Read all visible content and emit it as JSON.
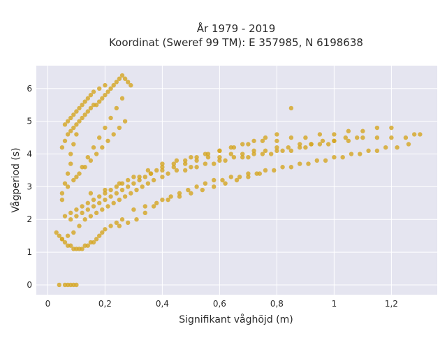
{
  "chart_data": {
    "type": "scatter",
    "title_line1": "År 1979 - 2019",
    "title_line2": "Koordinat (Sweref 99 TM): E 357985, N 6198638",
    "xlabel": "Signifikant våghöjd (m)",
    "ylabel": "Vågperiod (s)",
    "xlim": [
      -0.04,
      1.36
    ],
    "ylim": [
      -0.3,
      6.7
    ],
    "xticks": [
      {
        "value": 0,
        "label": "0"
      },
      {
        "value": 0.2,
        "label": "0,2"
      },
      {
        "value": 0.4,
        "label": "0,4"
      },
      {
        "value": 0.6,
        "label": "0,6"
      },
      {
        "value": 0.8,
        "label": "0,8"
      },
      {
        "value": 1.0,
        "label": "1"
      },
      {
        "value": 1.2,
        "label": "1,2"
      }
    ],
    "yticks": [
      {
        "value": 0,
        "label": "0"
      },
      {
        "value": 1,
        "label": "1"
      },
      {
        "value": 2,
        "label": "2"
      },
      {
        "value": 3,
        "label": "3"
      },
      {
        "value": 4,
        "label": "4"
      },
      {
        "value": 5,
        "label": "5"
      },
      {
        "value": 6,
        "label": "6"
      }
    ],
    "grid": true,
    "colors": {
      "marker": "#d4a520",
      "plot_bg": "#e5e5f0",
      "grid": "#ffffff",
      "text": "#2a2a2a"
    },
    "series": [
      {
        "x": [
          0.04,
          0.06,
          0.07,
          0.08,
          0.09,
          0.1,
          0.05,
          0.05,
          0.06,
          0.07,
          0.08,
          0.08,
          0.09,
          0.1,
          0.06,
          0.07,
          0.08,
          0.09,
          0.1,
          0.11,
          0.12,
          0.13,
          0.14,
          0.15,
          0.16,
          0.18,
          0.2,
          0.05,
          0.07,
          0.09,
          0.11,
          0.13,
          0.15,
          0.17,
          0.19,
          0.21,
          0.23,
          0.25,
          0.27,
          0.29,
          0.31,
          0.33,
          0.35,
          0.37,
          0.4,
          0.42,
          0.45,
          0.48,
          0.5,
          0.52,
          0.55,
          0.58,
          0.6,
          0.62,
          0.65,
          0.68,
          0.7,
          0.72,
          0.75,
          0.78,
          0.8,
          0.82,
          0.85,
          0.88,
          0.9,
          0.92,
          0.95,
          0.98,
          1.0,
          1.05,
          1.1,
          1.15,
          1.2,
          1.25,
          1.28,
          1.3,
          0.03,
          0.04,
          0.05,
          0.06,
          0.07,
          0.08,
          0.09,
          0.1,
          0.11,
          0.12,
          0.13,
          0.14,
          0.15,
          0.16,
          0.17,
          0.18,
          0.19,
          0.2,
          0.22,
          0.24,
          0.26,
          0.08,
          0.1,
          0.12,
          0.14,
          0.16,
          0.18,
          0.2,
          0.22,
          0.24,
          0.26,
          0.28,
          0.3,
          0.32,
          0.34,
          0.36,
          0.38,
          0.4,
          0.44,
          0.48,
          0.52,
          0.56,
          0.6,
          0.64,
          0.68,
          0.72,
          0.76,
          0.8,
          0.15,
          0.2,
          0.25,
          0.3,
          0.35,
          0.4,
          0.45,
          0.5,
          0.55,
          0.6,
          0.65,
          0.7,
          0.75,
          0.8,
          0.85,
          0.9,
          0.95,
          1.0,
          1.05,
          1.1,
          1.15,
          1.2,
          0.1,
          0.12,
          0.14,
          0.16,
          0.18,
          0.2,
          0.22,
          0.24,
          0.26,
          0.07,
          0.09,
          0.11,
          0.13,
          0.15,
          0.17,
          0.19,
          0.21,
          0.23,
          0.25,
          0.27,
          0.3,
          0.34,
          0.38,
          0.42,
          0.46,
          0.5,
          0.54,
          0.58,
          0.62,
          0.66,
          0.7,
          0.74,
          0.06,
          0.08,
          0.1,
          0.12,
          0.14,
          0.16,
          0.18,
          0.2,
          0.22,
          0.24,
          0.26,
          0.28,
          0.32,
          0.36,
          0.4,
          0.44,
          0.48,
          0.52,
          0.56,
          0.6,
          0.64,
          0.68,
          0.72,
          0.76,
          0.8,
          0.84,
          0.88,
          0.92,
          0.96,
          1.0,
          1.04,
          1.08,
          0.25,
          0.28,
          0.31,
          0.34,
          0.37,
          0.4,
          0.43,
          0.46,
          0.49,
          0.52,
          0.55,
          0.58,
          0.61,
          0.64,
          0.67,
          0.7,
          0.73,
          0.76,
          0.79,
          0.82,
          0.85,
          0.88,
          0.91,
          0.94,
          0.97,
          1.0,
          1.03,
          1.06,
          1.09,
          1.12,
          1.15,
          1.18,
          1.22,
          1.26,
          0.85,
          0.05,
          0.06,
          0.07,
          0.08,
          0.09,
          0.1,
          0.11,
          0.12,
          0.13,
          0.14,
          0.15,
          0.16,
          0.17,
          0.18,
          0.19,
          0.2,
          0.21,
          0.22,
          0.23,
          0.24,
          0.25,
          0.26,
          0.27,
          0.28,
          0.29
        ],
        "y": [
          0,
          0,
          0,
          0,
          0,
          0,
          2.6,
          2.8,
          3.1,
          3.4,
          3.7,
          4.0,
          4.3,
          4.6,
          4.9,
          5.0,
          5.1,
          5.2,
          5.3,
          5.4,
          5.5,
          5.6,
          5.7,
          5.8,
          5.9,
          6.0,
          6.1,
          1.4,
          1.5,
          1.6,
          1.8,
          2.0,
          2.1,
          2.2,
          2.3,
          2.4,
          2.5,
          2.6,
          2.7,
          2.8,
          2.9,
          3.0,
          3.1,
          3.2,
          3.3,
          3.4,
          3.5,
          3.5,
          3.6,
          3.6,
          3.7,
          3.7,
          3.8,
          3.8,
          3.9,
          3.9,
          3.9,
          4.0,
          4.0,
          4.0,
          4.1,
          4.1,
          4.1,
          4.2,
          4.2,
          4.3,
          4.3,
          4.3,
          4.4,
          4.4,
          4.5,
          4.5,
          4.5,
          4.5,
          4.6,
          4.6,
          1.6,
          1.5,
          1.4,
          1.3,
          1.2,
          1.2,
          1.1,
          1.1,
          1.1,
          1.1,
          1.2,
          1.2,
          1.3,
          1.3,
          1.4,
          1.5,
          1.6,
          1.7,
          1.8,
          1.9,
          2.0,
          2.0,
          2.1,
          2.2,
          2.3,
          2.4,
          2.5,
          2.6,
          2.7,
          2.8,
          2.9,
          3.0,
          3.1,
          3.2,
          3.3,
          3.4,
          3.5,
          3.6,
          3.7,
          3.8,
          3.9,
          4.0,
          4.1,
          4.2,
          4.3,
          4.4,
          4.5,
          4.6,
          2.8,
          2.9,
          3.1,
          3.3,
          3.5,
          3.7,
          3.8,
          3.9,
          4.0,
          4.1,
          4.2,
          4.3,
          4.4,
          4.4,
          4.5,
          4.5,
          4.6,
          4.6,
          4.7,
          4.7,
          4.8,
          4.8,
          3.3,
          3.6,
          3.9,
          4.2,
          4.5,
          4.8,
          5.1,
          5.4,
          5.7,
          3.0,
          3.2,
          3.4,
          3.6,
          3.8,
          4.0,
          4.2,
          4.4,
          4.6,
          4.8,
          5.0,
          2.3,
          2.4,
          2.5,
          2.6,
          2.7,
          2.8,
          2.9,
          3.0,
          3.1,
          3.2,
          3.3,
          3.4,
          2.1,
          2.2,
          2.3,
          2.4,
          2.5,
          2.6,
          2.7,
          2.8,
          2.9,
          3.0,
          3.1,
          3.2,
          3.3,
          3.4,
          3.5,
          3.6,
          3.7,
          3.8,
          3.9,
          3.9,
          4.0,
          4.0,
          4.1,
          4.1,
          4.2,
          4.2,
          4.3,
          4.3,
          4.4,
          4.4,
          4.5,
          4.5,
          1.8,
          1.9,
          2.0,
          2.2,
          2.4,
          2.6,
          2.7,
          2.8,
          2.9,
          3.0,
          3.1,
          3.2,
          3.2,
          3.3,
          3.3,
          3.4,
          3.4,
          3.5,
          3.5,
          3.6,
          3.6,
          3.7,
          3.7,
          3.8,
          3.8,
          3.9,
          3.9,
          4.0,
          4.0,
          4.1,
          4.1,
          4.2,
          4.2,
          4.3,
          5.4,
          4.2,
          4.4,
          4.6,
          4.7,
          4.8,
          4.9,
          5.0,
          5.1,
          5.2,
          5.3,
          5.4,
          5.5,
          5.5,
          5.6,
          5.7,
          5.8,
          5.9,
          6.0,
          6.1,
          6.2,
          6.3,
          6.4,
          6.3,
          6.2,
          6.1
        ]
      }
    ]
  }
}
